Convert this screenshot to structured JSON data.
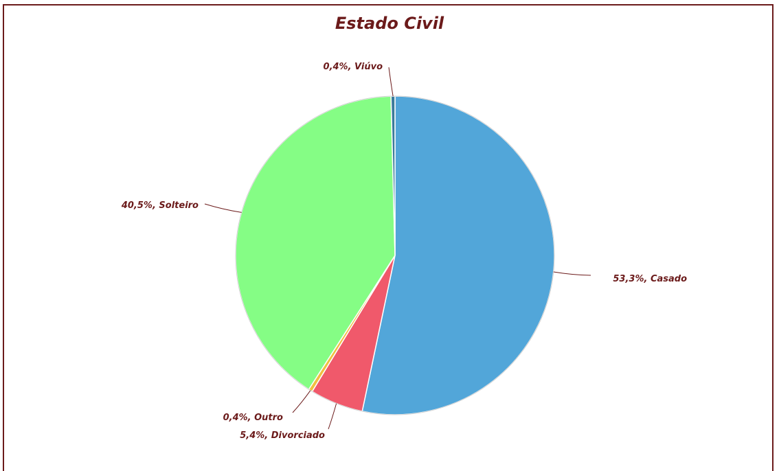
{
  "chart_data": {
    "type": "pie",
    "title": "Estado Civil",
    "slices": [
      {
        "label": "Casado",
        "value": 53.3,
        "display": "53,3%, Casado",
        "color": "#52a6d9"
      },
      {
        "label": "Divorciado",
        "value": 5.4,
        "display": "5,4%, Divorciado",
        "color": "#f0596b"
      },
      {
        "label": "Outro",
        "value": 0.4,
        "display": "0,4%, Outro",
        "color": "#f0c040"
      },
      {
        "label": "Solteiro",
        "value": 40.5,
        "display": "40,5%, Solteiro",
        "color": "#85fd85"
      },
      {
        "label": "Viúvo",
        "value": 0.4,
        "display": "0,4%, Viúvo",
        "color": "#3a7a9a"
      }
    ],
    "start_angle": "top",
    "direction": "clockwise",
    "frame_color": "#6b1a1a",
    "label_color": "#6b1a1a"
  }
}
